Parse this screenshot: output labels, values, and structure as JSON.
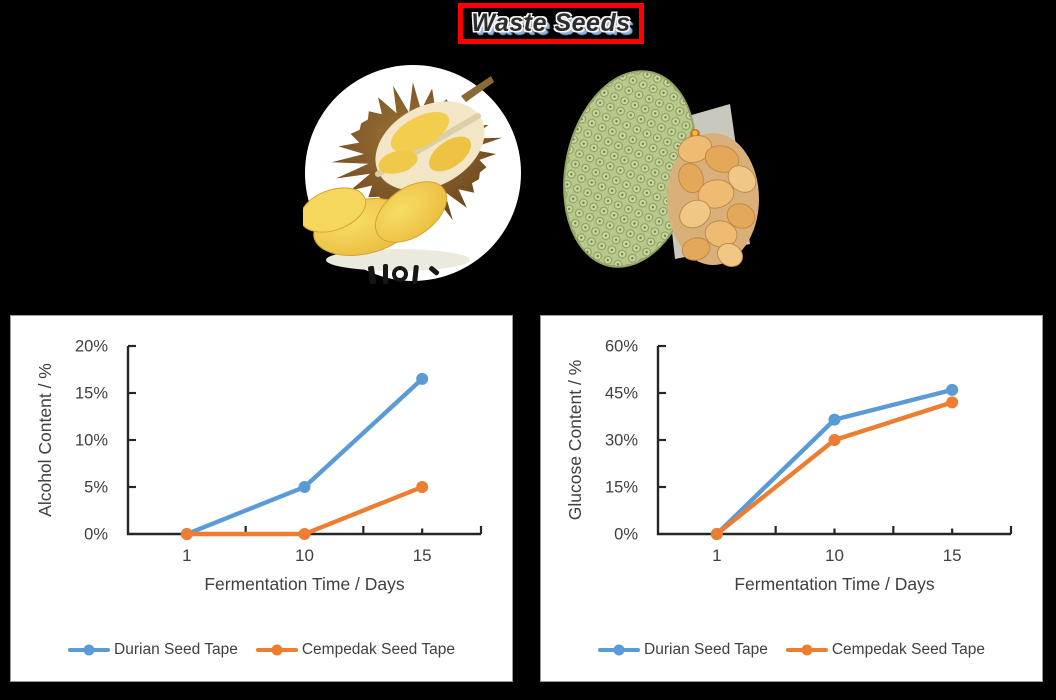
{
  "title": {
    "text": "Waste Seeds",
    "border_color": "#fe0000",
    "glow_color": "#8db3e2"
  },
  "images": {
    "durian": {
      "label": "durian-fruit-photo"
    },
    "cempedak": {
      "label": "cempedak-fruit-photo"
    }
  },
  "colors": {
    "page_bg": "#000000",
    "panel_bg": "#ffffff",
    "axis": "#262626",
    "text": "#404040",
    "series_blue": "#5B9BD5",
    "series_orange": "#ED7D31"
  },
  "chart_data": [
    {
      "type": "line",
      "title": "",
      "xlabel": "Fermentation Time / Days",
      "ylabel": "Alcohol Content / %",
      "categories": [
        "1",
        "10",
        "15"
      ],
      "ylim": [
        0,
        20
      ],
      "yticks": [
        0,
        5,
        10,
        15,
        20
      ],
      "ytick_labels": [
        "0%",
        "5%",
        "10%",
        "15%",
        "20%"
      ],
      "grid": false,
      "legend_position": "bottom",
      "series": [
        {
          "name": "Durian Seed Tape",
          "color": "#5B9BD5",
          "values": [
            0,
            5,
            16.5
          ]
        },
        {
          "name": "Cempedak Seed Tape",
          "color": "#ED7D31",
          "values": [
            0,
            0,
            5
          ]
        }
      ]
    },
    {
      "type": "line",
      "title": "",
      "xlabel": "Fermentation Time / Days",
      "ylabel": "Glucose Content / %",
      "categories": [
        "1",
        "10",
        "15"
      ],
      "ylim": [
        0,
        60
      ],
      "yticks": [
        0,
        15,
        30,
        45,
        60
      ],
      "ytick_labels": [
        "0%",
        "15%",
        "30%",
        "45%",
        "60%"
      ],
      "grid": false,
      "legend_position": "bottom",
      "series": [
        {
          "name": "Durian Seed Tape",
          "color": "#5B9BD5",
          "values": [
            0,
            36.5,
            46
          ]
        },
        {
          "name": "Cempedak Seed Tape",
          "color": "#ED7D31",
          "values": [
            0,
            30,
            42
          ]
        }
      ]
    }
  ]
}
